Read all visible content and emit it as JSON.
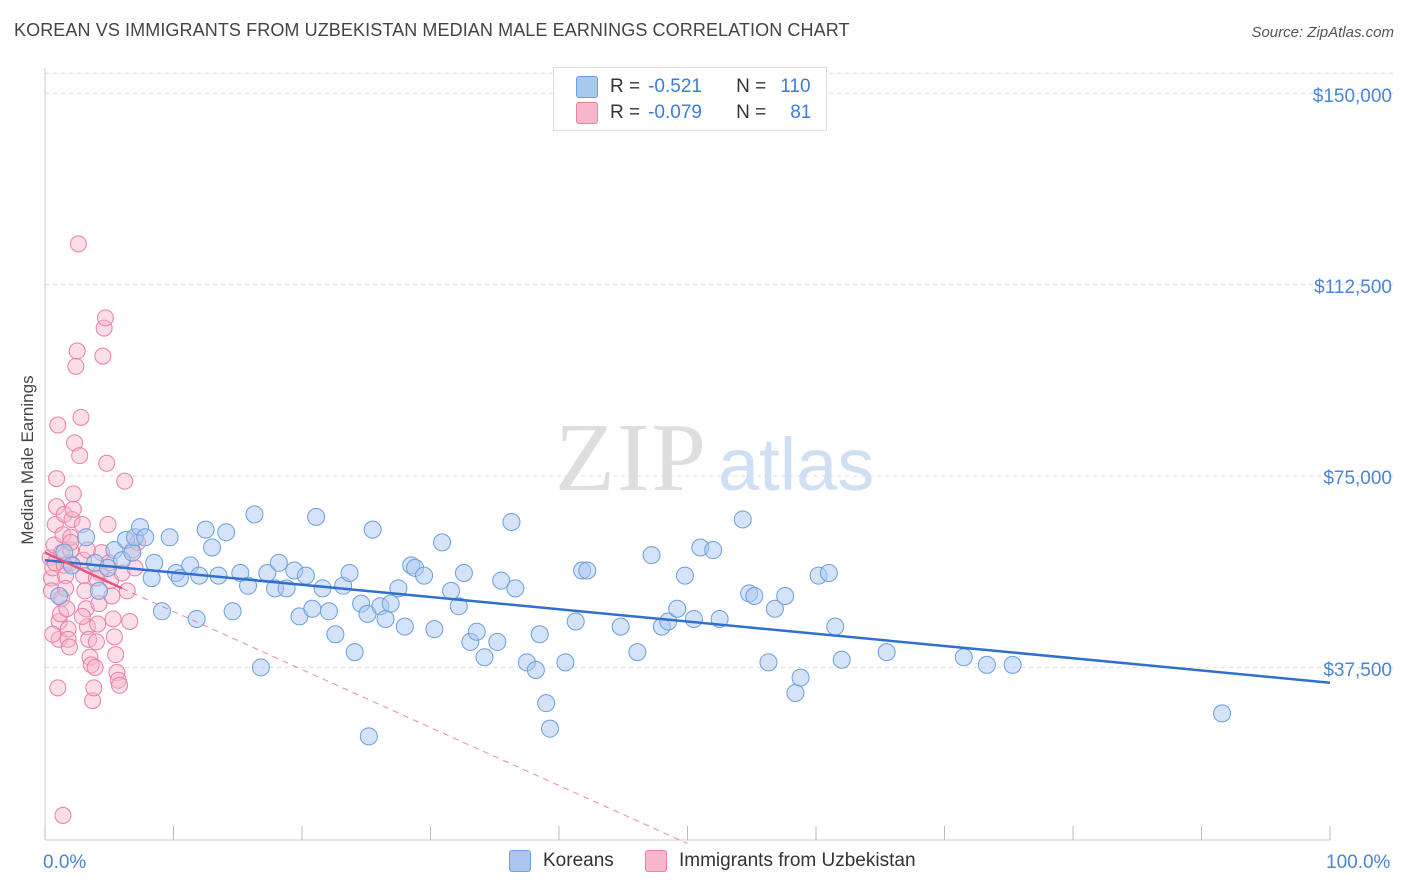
{
  "header": {
    "title": "KOREAN VS IMMIGRANTS FROM UZBEKISTAN MEDIAN MALE EARNINGS CORRELATION CHART",
    "source": "Source: ZipAtlas.com"
  },
  "watermark": {
    "zip": "ZIP",
    "atlas": "atlas"
  },
  "legend": {
    "rows": [
      {
        "swatch": "#a9c8f0",
        "r_label": "R =",
        "r_value": "-0.521",
        "n_label": "N =",
        "n_value": "110"
      },
      {
        "swatch": "#f7b6c9",
        "r_label": "R =",
        "r_value": "-0.079",
        "n_label": "N =",
        "n_value": "81"
      }
    ]
  },
  "bottom_legend": {
    "koreans": "Koreans",
    "uzbekistan": "Immigrants from Uzbekistan"
  },
  "colors": {
    "blue_fill": "#a9c8f0",
    "blue_stroke": "#6a9fe0",
    "blue_line": "#2f6fce",
    "pink_fill": "#f7b6c9",
    "pink_stroke": "#ec7fa0",
    "pink_line": "#e8547e",
    "grid": "#dddddd",
    "axis_text": "#4a86d4"
  },
  "chart_data": {
    "type": "scatter",
    "title": "KOREAN VS IMMIGRANTS FROM UZBEKISTAN MEDIAN MALE EARNINGS CORRELATION CHART",
    "xlabel": "",
    "ylabel": "Median Male Earnings",
    "xlim": [
      0,
      100
    ],
    "ylim": [
      3000,
      155000
    ],
    "x_tick_labels": [
      "0.0%",
      "100.0%"
    ],
    "y_ticks": [
      37500,
      75000,
      112500,
      150000
    ],
    "y_tick_labels": [
      "$37,500",
      "$75,000",
      "$112,500",
      "$150,000"
    ],
    "grid": true,
    "legend_position": "top-center",
    "series": [
      {
        "name": "Koreans",
        "r": -0.521,
        "n": 110,
        "trend": {
          "x0": 0,
          "y0": 58500,
          "x1": 100,
          "y1": 34500
        },
        "points": [
          [
            1.1,
            51500
          ],
          [
            1.5,
            60000
          ],
          [
            2.1,
            57500
          ],
          [
            3.2,
            63000
          ],
          [
            3.9,
            58000
          ],
          [
            4.2,
            52500
          ],
          [
            4.9,
            57000
          ],
          [
            5.4,
            60500
          ],
          [
            6.0,
            58500
          ],
          [
            6.3,
            62500
          ],
          [
            6.8,
            60000
          ],
          [
            7.0,
            63000
          ],
          [
            7.4,
            65000
          ],
          [
            7.8,
            63000
          ],
          [
            8.3,
            55000
          ],
          [
            8.5,
            58000
          ],
          [
            9.1,
            48500
          ],
          [
            9.7,
            63000
          ],
          [
            10.2,
            56000
          ],
          [
            10.5,
            55000
          ],
          [
            11.3,
            57500
          ],
          [
            11.8,
            47000
          ],
          [
            12.0,
            55500
          ],
          [
            12.5,
            64500
          ],
          [
            13.0,
            61000
          ],
          [
            13.5,
            55500
          ],
          [
            14.1,
            64000
          ],
          [
            14.6,
            48500
          ],
          [
            15.2,
            56000
          ],
          [
            15.8,
            53500
          ],
          [
            16.3,
            67500
          ],
          [
            16.8,
            37500
          ],
          [
            17.3,
            56000
          ],
          [
            17.9,
            53000
          ],
          [
            18.2,
            58000
          ],
          [
            18.8,
            53000
          ],
          [
            19.4,
            56500
          ],
          [
            19.8,
            47500
          ],
          [
            20.3,
            55500
          ],
          [
            20.8,
            49000
          ],
          [
            21.1,
            67000
          ],
          [
            21.6,
            53000
          ],
          [
            22.1,
            48500
          ],
          [
            22.6,
            44000
          ],
          [
            23.2,
            53500
          ],
          [
            23.7,
            56000
          ],
          [
            24.1,
            40500
          ],
          [
            24.6,
            50000
          ],
          [
            25.1,
            48000
          ],
          [
            25.5,
            64500
          ],
          [
            26.1,
            49500
          ],
          [
            26.5,
            47000
          ],
          [
            26.9,
            50000
          ],
          [
            27.5,
            53000
          ],
          [
            28.0,
            45500
          ],
          [
            28.5,
            57500
          ],
          [
            28.8,
            57000
          ],
          [
            29.5,
            55500
          ],
          [
            30.3,
            45000
          ],
          [
            30.9,
            62000
          ],
          [
            31.6,
            52500
          ],
          [
            32.2,
            49500
          ],
          [
            32.6,
            56000
          ],
          [
            33.1,
            42500
          ],
          [
            33.6,
            44500
          ],
          [
            34.2,
            39500
          ],
          [
            35.2,
            42500
          ],
          [
            35.5,
            54500
          ],
          [
            36.3,
            66000
          ],
          [
            36.6,
            53000
          ],
          [
            37.5,
            38500
          ],
          [
            38.2,
            37000
          ],
          [
            38.5,
            44000
          ],
          [
            39.0,
            30500
          ],
          [
            39.3,
            25500
          ],
          [
            40.5,
            38500
          ],
          [
            41.3,
            46500
          ],
          [
            41.8,
            56500
          ],
          [
            42.2,
            56500
          ],
          [
            44.8,
            45500
          ],
          [
            46.1,
            40500
          ],
          [
            47.2,
            59500
          ],
          [
            48.0,
            45500
          ],
          [
            48.5,
            46500
          ],
          [
            49.2,
            49000
          ],
          [
            49.8,
            55500
          ],
          [
            50.5,
            47000
          ],
          [
            51.0,
            61000
          ],
          [
            52.0,
            60500
          ],
          [
            52.5,
            47000
          ],
          [
            54.3,
            66500
          ],
          [
            54.8,
            52000
          ],
          [
            55.2,
            51500
          ],
          [
            56.3,
            38500
          ],
          [
            56.8,
            49000
          ],
          [
            57.6,
            51500
          ],
          [
            58.4,
            32500
          ],
          [
            58.8,
            35500
          ],
          [
            60.2,
            55500
          ],
          [
            61.0,
            56000
          ],
          [
            61.5,
            45500
          ],
          [
            62.0,
            39000
          ],
          [
            65.5,
            40500
          ],
          [
            71.5,
            39500
          ],
          [
            73.3,
            38000
          ],
          [
            75.3,
            38000
          ],
          [
            91.6,
            28500
          ],
          [
            25.2,
            24000
          ]
        ]
      },
      {
        "name": "Immigrants from Uzbekistan",
        "r": -0.079,
        "n": 81,
        "trend": {
          "x0": 0,
          "y0": 60000,
          "x1": 6,
          "y1": 53000
        },
        "trend_extended": {
          "x0": 6,
          "y0": 53000,
          "x1": 50,
          "y1": 3000
        },
        "points": [
          [
            0.4,
            59000
          ],
          [
            0.5,
            55000
          ],
          [
            0.5,
            52500
          ],
          [
            0.6,
            57000
          ],
          [
            0.7,
            61500
          ],
          [
            0.8,
            58000
          ],
          [
            0.8,
            65500
          ],
          [
            0.9,
            69000
          ],
          [
            0.9,
            74500
          ],
          [
            1.0,
            85000
          ],
          [
            1.0,
            33500
          ],
          [
            1.1,
            43000
          ],
          [
            1.1,
            46500
          ],
          [
            1.2,
            48000
          ],
          [
            1.3,
            51000
          ],
          [
            1.3,
            60000
          ],
          [
            1.4,
            63500
          ],
          [
            1.5,
            67500
          ],
          [
            1.5,
            57500
          ],
          [
            1.6,
            55500
          ],
          [
            1.6,
            53000
          ],
          [
            1.7,
            49000
          ],
          [
            1.8,
            45000
          ],
          [
            1.8,
            43000
          ],
          [
            1.9,
            41500
          ],
          [
            1.9,
            58000
          ],
          [
            2.0,
            60500
          ],
          [
            2.0,
            63000
          ],
          [
            2.1,
            66500
          ],
          [
            2.2,
            68500
          ],
          [
            2.2,
            71500
          ],
          [
            2.3,
            81500
          ],
          [
            2.4,
            96500
          ],
          [
            2.5,
            99500
          ],
          [
            2.6,
            120500
          ],
          [
            2.7,
            79000
          ],
          [
            2.8,
            86500
          ],
          [
            2.9,
            65500
          ],
          [
            3.0,
            58500
          ],
          [
            3.0,
            55500
          ],
          [
            3.1,
            52500
          ],
          [
            3.2,
            49000
          ],
          [
            3.3,
            45500
          ],
          [
            3.4,
            43000
          ],
          [
            3.5,
            39500
          ],
          [
            3.6,
            38000
          ],
          [
            3.7,
            31000
          ],
          [
            3.8,
            33500
          ],
          [
            3.9,
            37500
          ],
          [
            4.0,
            42500
          ],
          [
            4.1,
            46000
          ],
          [
            4.2,
            50000
          ],
          [
            4.3,
            56000
          ],
          [
            4.4,
            60000
          ],
          [
            4.5,
            98500
          ],
          [
            4.6,
            104000
          ],
          [
            4.7,
            106000
          ],
          [
            4.8,
            77500
          ],
          [
            4.9,
            65500
          ],
          [
            5.0,
            58000
          ],
          [
            5.1,
            54500
          ],
          [
            5.2,
            51500
          ],
          [
            5.3,
            47000
          ],
          [
            5.4,
            43500
          ],
          [
            5.5,
            40000
          ],
          [
            5.6,
            36500
          ],
          [
            5.7,
            35000
          ],
          [
            5.8,
            34000
          ],
          [
            6.0,
            56000
          ],
          [
            6.2,
            74000
          ],
          [
            6.4,
            52500
          ],
          [
            6.6,
            46500
          ],
          [
            6.8,
            60500
          ],
          [
            7.0,
            57000
          ],
          [
            7.2,
            62000
          ],
          [
            1.4,
            8500
          ],
          [
            0.6,
            44000
          ],
          [
            2.9,
            47500
          ],
          [
            3.3,
            60500
          ],
          [
            4.0,
            55000
          ],
          [
            2.0,
            62000
          ]
        ]
      }
    ]
  }
}
